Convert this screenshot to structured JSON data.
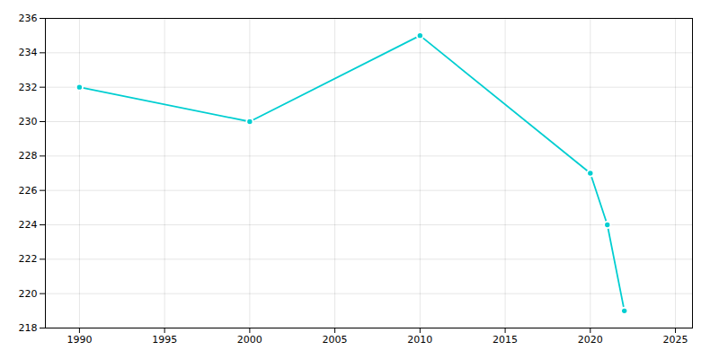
{
  "chart_data": {
    "type": "line",
    "x": [
      1990,
      2000,
      2010,
      2020,
      2021,
      2022
    ],
    "values": [
      232,
      230,
      235,
      227,
      224,
      219
    ],
    "color": "#00CED1",
    "marker": "circle",
    "xlim": [
      1988,
      2026
    ],
    "ylim": [
      218,
      236
    ],
    "xticks": [
      1990,
      1995,
      2000,
      2005,
      2010,
      2015,
      2020,
      2025
    ],
    "yticks": [
      218,
      220,
      222,
      224,
      226,
      228,
      230,
      232,
      234,
      236
    ],
    "grid": true
  }
}
